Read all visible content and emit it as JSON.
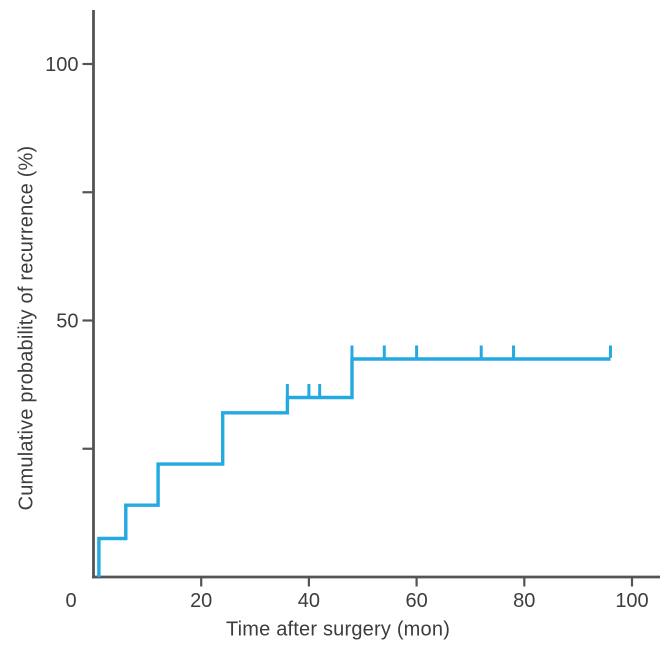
{
  "figure": {
    "background": "#ffffff"
  },
  "colors": {
    "curve": "#25a9e1",
    "axis": "#545457",
    "text": "#3d3d3f"
  },
  "chart_data": {
    "type": "line",
    "subtype": "kaplan-meier-step",
    "title": "",
    "xlabel": "Time after surgery (mon)",
    "ylabel": "Cumulative probability of recurrence (%)",
    "xlim": [
      0,
      105
    ],
    "ylim": [
      0,
      110
    ],
    "grid": false,
    "legend": "none",
    "x_ticks": [
      {
        "value": 0,
        "label": "0"
      },
      {
        "value": 20,
        "label": "20"
      },
      {
        "value": 40,
        "label": "40"
      },
      {
        "value": 60,
        "label": "60"
      },
      {
        "value": 80,
        "label": "80"
      },
      {
        "value": 100,
        "label": "100"
      }
    ],
    "y_ticks_labeled": [
      {
        "value": 50,
        "label": "50"
      },
      {
        "value": 100,
        "label": "100"
      }
    ],
    "y_ticks_unlabeled": [
      25,
      75
    ],
    "curve_start_month": 1,
    "curve_end_month": 96,
    "events": [
      {
        "month": 1,
        "cum_pct": 7.5
      },
      {
        "month": 6,
        "cum_pct": 14
      },
      {
        "month": 12,
        "cum_pct": 22
      },
      {
        "month": 24,
        "cum_pct": 32
      },
      {
        "month": 36,
        "cum_pct": 35
      },
      {
        "month": 48,
        "cum_pct": 42.5
      }
    ],
    "censored": [
      {
        "month": 36,
        "cum_pct": 35
      },
      {
        "month": 40,
        "cum_pct": 35
      },
      {
        "month": 42,
        "cum_pct": 35
      },
      {
        "month": 48,
        "cum_pct": 42.5
      },
      {
        "month": 54,
        "cum_pct": 42.5
      },
      {
        "month": 60,
        "cum_pct": 42.5
      },
      {
        "month": 72,
        "cum_pct": 42.5
      },
      {
        "month": 78,
        "cum_pct": 42.5
      },
      {
        "month": 96,
        "cum_pct": 42.5
      }
    ]
  }
}
